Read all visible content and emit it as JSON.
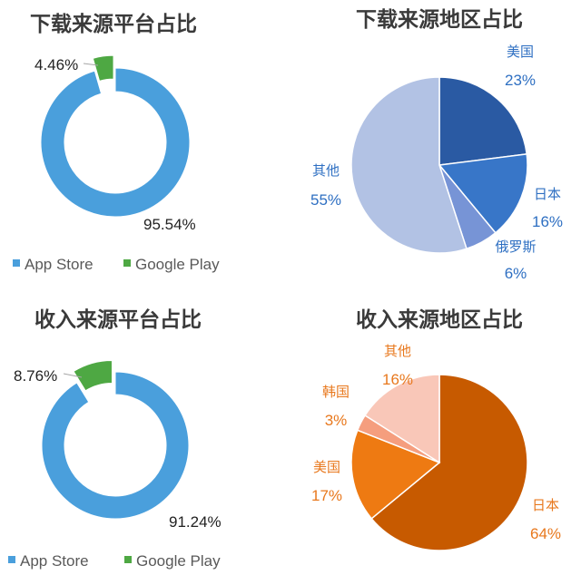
{
  "colors": {
    "app_store": "#4a9fdc",
    "google_play": "#4ea843",
    "title": "#3a3a3a",
    "legend_text": "#595959",
    "region_blue_text": "#2e6fc2",
    "region_orange_text": "#e8781d"
  },
  "chart_data": [
    {
      "type": "pie",
      "variant": "donut",
      "title": "下载来源平台占比",
      "slices": [
        {
          "name": "App Store",
          "value": 95.54,
          "label": "95.54%"
        },
        {
          "name": "Google Play",
          "value": 4.46,
          "label": "4.46%"
        }
      ],
      "legend": [
        "App Store",
        "Google Play"
      ],
      "legend_position": "bottom"
    },
    {
      "type": "pie",
      "title": "下载来源地区占比",
      "slices": [
        {
          "name": "美国",
          "value": 23,
          "label": "23%",
          "color": "#2a5aa3"
        },
        {
          "name": "日本",
          "value": 16,
          "label": "16%",
          "color": "#3876c8"
        },
        {
          "name": "俄罗斯",
          "value": 6,
          "label": "6%",
          "color": "#7794d6"
        },
        {
          "name": "其他",
          "value": 55,
          "label": "55%",
          "color": "#b2c2e4"
        }
      ]
    },
    {
      "type": "pie",
      "variant": "donut",
      "title": "收入来源平台占比",
      "slices": [
        {
          "name": "App Store",
          "value": 91.24,
          "label": "91.24%"
        },
        {
          "name": "Google Play",
          "value": 8.76,
          "label": "8.76%"
        }
      ],
      "legend": [
        "App Store",
        "Google Play"
      ],
      "legend_position": "bottom"
    },
    {
      "type": "pie",
      "title": "收入来源地区占比",
      "slices": [
        {
          "name": "日本",
          "value": 64,
          "label": "64%",
          "color": "#c75a00"
        },
        {
          "name": "美国",
          "value": 17,
          "label": "17%",
          "color": "#ee7a12"
        },
        {
          "name": "韩国",
          "value": 3,
          "label": "3%",
          "color": "#f59e7e"
        },
        {
          "name": "其他",
          "value": 16,
          "label": "16%",
          "color": "#f9c7b8"
        }
      ]
    }
  ]
}
